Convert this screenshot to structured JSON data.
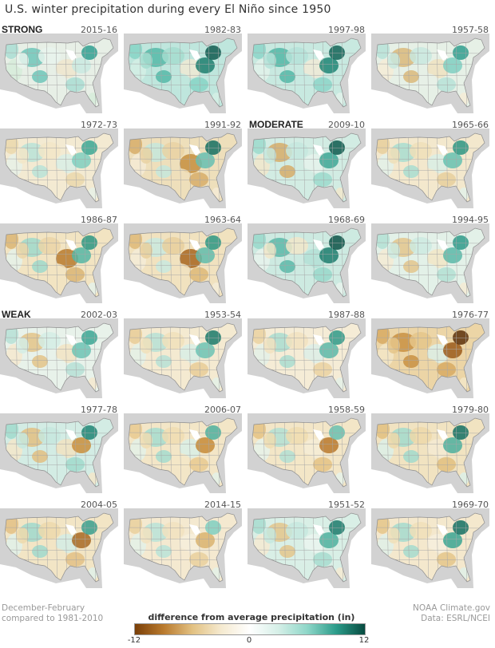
{
  "title": "U.S. winter precipitation during every El Niño since 1950",
  "panels": [
    {
      "year": "2015-16",
      "category": "STRONG",
      "palette": [
        "#e7efe6",
        "#a9ddd2",
        "#d6ecd9",
        "#6fc5b8",
        "#e8f3ec",
        "#eee5cc",
        "#c9e9e0",
        "#2e9f8f"
      ]
    },
    {
      "year": "1982-83",
      "category": "",
      "palette": [
        "#bfe6dd",
        "#86d3c6",
        "#d3eee5",
        "#55b9a8",
        "#a5dccf",
        "#f0e9d4",
        "#1d7e6f",
        "#0f5b50"
      ]
    },
    {
      "year": "1997-98",
      "category": "",
      "palette": [
        "#c8e9e0",
        "#8cd5c8",
        "#e2f2ea",
        "#52b7a6",
        "#b5e2d8",
        "#f1ead6",
        "#1f8574",
        "#136457"
      ]
    },
    {
      "year": "1957-58",
      "category": "",
      "palette": [
        "#e6f0e6",
        "#b6e2d7",
        "#f4ecd6",
        "#d9b97a",
        "#c8e8de",
        "#efe2bf",
        "#7fcfc1",
        "#2f9d8d"
      ]
    },
    {
      "year": "1972-73",
      "category": "",
      "palette": [
        "#f3ead2",
        "#ead8ad",
        "#e6f1e8",
        "#b9e3d8",
        "#f2e6c8",
        "#d8efe6",
        "#7fcfc0",
        "#3aa794"
      ]
    },
    {
      "year": "1991-92",
      "category": "",
      "palette": [
        "#eedfbb",
        "#d7ae6a",
        "#f4ebd5",
        "#c4e7dc",
        "#e9d2a3",
        "#c68f3e",
        "#66c0b1",
        "#147062"
      ]
    },
    {
      "year": "2009-10",
      "category": "MODERATE",
      "palette": [
        "#d2ece3",
        "#9cdacd",
        "#f2e7cb",
        "#d7ad68",
        "#c6e8de",
        "#e6f3ec",
        "#3ea795",
        "#0e5a4e"
      ]
    },
    {
      "year": "1965-66",
      "category": "",
      "palette": [
        "#f3e8cd",
        "#e6cf9c",
        "#e2f1e9",
        "#a8ddd0",
        "#eedfb9",
        "#d8efe5",
        "#65c1b0",
        "#2a9583"
      ]
    },
    {
      "year": "1986-87",
      "category": "",
      "palette": [
        "#f2e4c2",
        "#dbb574",
        "#e5f2ea",
        "#9fd9cb",
        "#ebd5a7",
        "#b87a2d",
        "#55b6a4",
        "#2b9683"
      ]
    },
    {
      "year": "1963-64",
      "category": "",
      "palette": [
        "#f1e2bf",
        "#deb977",
        "#f5ecd7",
        "#c9e9df",
        "#e8cf9c",
        "#a8651f",
        "#60bcab",
        "#2b9683"
      ]
    },
    {
      "year": "1968-69",
      "category": "",
      "palette": [
        "#cdeae1",
        "#98d8ca",
        "#e7f3ec",
        "#5bb9a8",
        "#f1e6c9",
        "#b3e1d6",
        "#1c7d6d",
        "#0c5246"
      ]
    },
    {
      "year": "1994-95",
      "category": "",
      "palette": [
        "#e3f1e8",
        "#b3e0d4",
        "#f4ebd3",
        "#e3c68c",
        "#cdeae1",
        "#f2e6c6",
        "#5bb9a8",
        "#2e9a88"
      ]
    },
    {
      "year": "2002-03",
      "category": "WEAK",
      "palette": [
        "#e8f2ea",
        "#b6e1d6",
        "#f4e9cf",
        "#e3c488",
        "#d4ede5",
        "#f2e4c3",
        "#6cc3b4",
        "#3aa693"
      ]
    },
    {
      "year": "1953-54",
      "category": "",
      "palette": [
        "#f4ead1",
        "#e8cd98",
        "#e3f1e8",
        "#b6e1d6",
        "#f0e0bb",
        "#d8efe6",
        "#6cc3b4",
        "#1a7a6b"
      ]
    },
    {
      "year": "1987-88",
      "category": "",
      "palette": [
        "#f5ecd6",
        "#ead2a1",
        "#e3f1e8",
        "#a9ddd0",
        "#f1e2c0",
        "#dceee7",
        "#5bb9a8",
        "#2e9a88"
      ]
    },
    {
      "year": "1976-77",
      "category": "",
      "palette": [
        "#ecd5a6",
        "#d8aa63",
        "#f3e6c7",
        "#c99142",
        "#e5c68a",
        "#dcf0e8",
        "#9b5a1a",
        "#5c300a"
      ]
    },
    {
      "year": "1977-78",
      "category": "",
      "palette": [
        "#d3ece4",
        "#a0dacd",
        "#f3e7ca",
        "#e2c081",
        "#c6e8de",
        "#f1e3c1",
        "#c98e3b",
        "#1f8574"
      ]
    },
    {
      "year": "2006-07",
      "category": "",
      "palette": [
        "#f3e6c7",
        "#e7c98f",
        "#e3f1e8",
        "#a5dccf",
        "#efdcb1",
        "#d8efe6",
        "#c58a37",
        "#4caf9d"
      ]
    },
    {
      "year": "1958-59",
      "category": "",
      "palette": [
        "#f3e6c7",
        "#e4c284",
        "#e5f2ea",
        "#b1dfd3",
        "#efdcb0",
        "#f5ecd6",
        "#b8782c",
        "#67c0b0"
      ]
    },
    {
      "year": "1979-80",
      "category": "",
      "palette": [
        "#f1e3c1",
        "#e2bf7f",
        "#dcf0e8",
        "#a2dacd",
        "#edd8a9",
        "#f4ead2",
        "#4caf9d",
        "#137063"
      ]
    },
    {
      "year": "2004-05",
      "category": "",
      "palette": [
        "#f2e5c5",
        "#e3c185",
        "#e0f1e9",
        "#a0d9cc",
        "#edd9ab",
        "#d4ede5",
        "#a86a23",
        "#3a9f8d"
      ]
    },
    {
      "year": "2014-15",
      "category": "",
      "palette": [
        "#f4e9d0",
        "#e9d09e",
        "#e3f1e8",
        "#b9e3d8",
        "#f1e2c0",
        "#f6eedc",
        "#d9b36f",
        "#7fcfc1"
      ]
    },
    {
      "year": "1951-52",
      "category": "",
      "palette": [
        "#d9efe6",
        "#a7dccf",
        "#f4ead1",
        "#e3c68b",
        "#c5e8de",
        "#eaf5ef",
        "#4db09e",
        "#1c7a6b"
      ]
    },
    {
      "year": "1969-70",
      "category": "",
      "palette": [
        "#f4e8cd",
        "#e4c58a",
        "#dff0e8",
        "#a4dbce",
        "#f0dfb8",
        "#f6eedd",
        "#3aa492",
        "#137063"
      ]
    }
  ],
  "colors": {
    "land_mask": "#d2d2d2",
    "state_lines": "#a7a7a7",
    "wet_max": "#074b40",
    "dry_max": "#7a3f08",
    "neutral": "#ffffff"
  },
  "footer": {
    "left_line1": "December-February",
    "left_line2": "compared to 1981-2010",
    "right_line1": "NOAA Climate.gov",
    "right_line2": "Data: ESRL/NCEI"
  },
  "legend": {
    "title": "difference from average precipitation (in)",
    "min_label": "-12",
    "mid_label": "0",
    "max_label": "12",
    "stops": [
      "#7a3f08",
      "#b97a2e",
      "#e2c182",
      "#f5ead0",
      "#ffffff",
      "#d5efe7",
      "#8ed6c8",
      "#2c9c8a",
      "#074b40"
    ]
  }
}
